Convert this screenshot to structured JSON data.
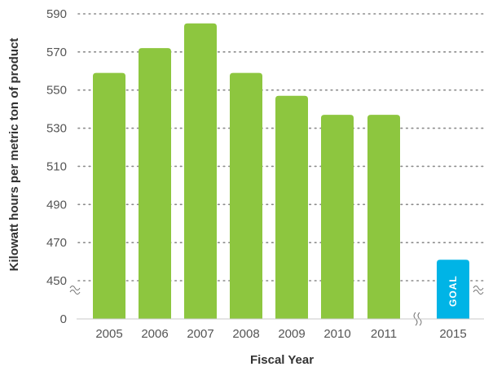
{
  "chart_data": {
    "type": "bar",
    "xlabel": "Fiscal Year",
    "ylabel": "Kilowatt hours per metric ton of product",
    "y_ticks": [
      "0",
      "450",
      "470",
      "490",
      "510",
      "530",
      "550",
      "570",
      "590"
    ],
    "ylim": [
      450,
      590
    ],
    "grid": "dotted horizontal",
    "axis_break": "between 0 and 450 on y; between 2011 and 2015 on x",
    "categories": [
      "2005",
      "2006",
      "2007",
      "2008",
      "2009",
      "2010",
      "2011",
      "2015"
    ],
    "series": [
      {
        "values": [
          559,
          572,
          585,
          559,
          547,
          537,
          537,
          461
        ]
      }
    ],
    "annotations": [
      {
        "category": "2015",
        "text": "GOAL"
      }
    ],
    "colors": {
      "actual": "#8dc63f",
      "goal": "#00b4e6",
      "grid": "#8a8a8a"
    }
  }
}
